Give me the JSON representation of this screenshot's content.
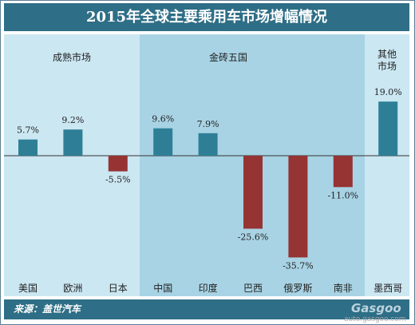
{
  "header": {
    "title": "2015年全球主要乘用车市场增幅情况"
  },
  "footer": {
    "source": "来源：盖世汽车"
  },
  "watermark": {
    "logo": "Gasgoo",
    "url": "auto.gasgoo.com"
  },
  "colors": {
    "positive_bar": "#2e7f96",
    "negative_bar": "#963333",
    "group_mature": "#cbe7f2",
    "group_brics": "#a8d3e4",
    "group_other": "#cbe7f2",
    "title_bg": "#2e6e86"
  },
  "chart_data": {
    "type": "bar",
    "title": "2015年全球主要乘用车市场增幅情况",
    "categories": [
      "美国",
      "欧洲",
      "日本",
      "中国",
      "印度",
      "巴西",
      "俄罗斯",
      "南非",
      "墨西哥"
    ],
    "values": [
      5.7,
      9.2,
      -5.5,
      9.6,
      7.9,
      -25.6,
      -35.7,
      -11.0,
      19.0
    ],
    "value_labels": [
      "5.7%",
      "9.2%",
      "-5.5%",
      "9.6%",
      "7.9%",
      "-25.6%",
      "-35.7%",
      "-11.0%",
      "19.0%"
    ],
    "unit": "%",
    "ylim": [
      -40,
      25
    ],
    "groups": [
      {
        "name": "成熟市场",
        "categories": [
          "美国",
          "欧洲",
          "日本"
        ]
      },
      {
        "name": "金砖五国",
        "categories": [
          "中国",
          "印度",
          "巴西",
          "俄罗斯",
          "南非"
        ]
      },
      {
        "name_lines": [
          "其他",
          "市场"
        ],
        "categories": [
          "墨西哥"
        ]
      }
    ],
    "grid": false,
    "legend": "none"
  }
}
